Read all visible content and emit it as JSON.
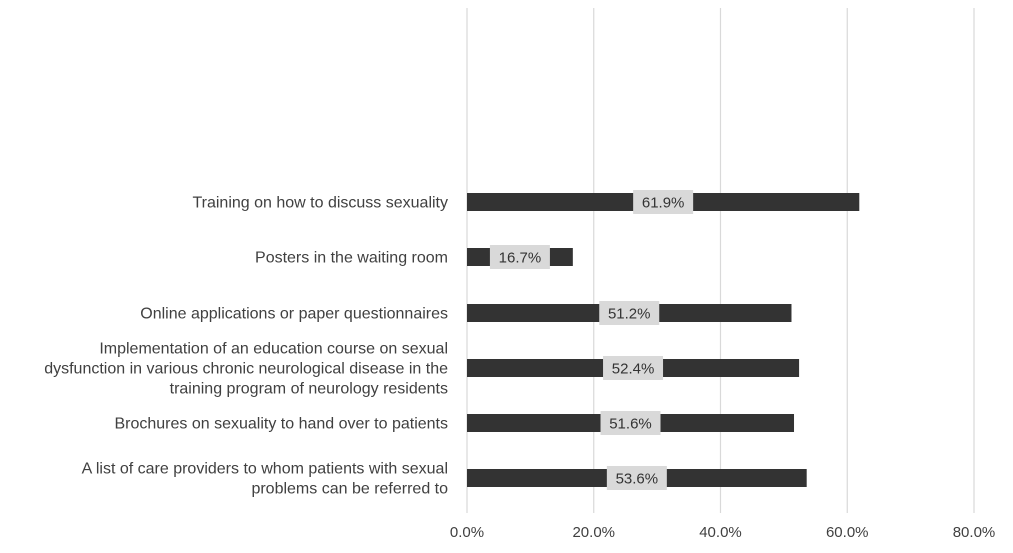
{
  "chart_data": {
    "type": "bar",
    "orientation": "horizontal",
    "categories": [
      [
        "Training on how to discuss sexuality"
      ],
      [
        "Posters in the waiting room"
      ],
      [
        "Online applications or paper questionnaires"
      ],
      [
        "Implementation of an education course on sexual",
        "dysfunction in various chronic neurological disease in the",
        "training program of neurology residents"
      ],
      [
        "Brochures on sexuality to hand over to patients"
      ],
      [
        "A list of care providers to whom patients with sexual",
        "problems can be referred to"
      ]
    ],
    "values": [
      61.9,
      16.7,
      51.2,
      52.4,
      51.6,
      53.6
    ],
    "data_labels": [
      "61.9%",
      "16.7%",
      "51.2%",
      "52.4%",
      "51.6%",
      "53.6%"
    ],
    "xlim": [
      0,
      80
    ],
    "xticks": [
      0,
      20,
      40,
      60,
      80
    ],
    "xtick_labels": [
      "0.0%",
      "20.0%",
      "40.0%",
      "60.0%",
      "80.0%"
    ],
    "grid": true,
    "colors": {
      "bar": "#333333",
      "grid": "#d9d9d9",
      "label_box": "#d9d9d9",
      "text": "#404040"
    }
  }
}
